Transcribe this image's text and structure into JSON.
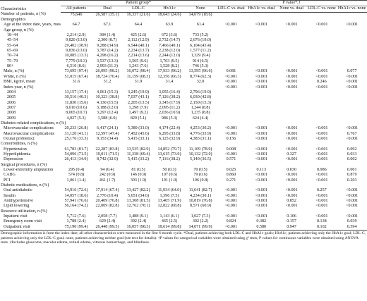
{
  "table": {
    "header": {
      "characteristics": "Characteristics",
      "group_title": "Patient group*",
      "groups": [
        "All patients",
        "Dual",
        "LDL-C",
        "HbA1c",
        "None"
      ],
      "pvalue_title": "P value*,†",
      "pvalue_columns": [
        "LDL-C vs. dual",
        "HbA1c vs. dual",
        "None vs. dual",
        "LDL-C vs. none",
        "HbA1c vs. none"
      ]
    },
    "sections": [
      {
        "rows": [
          {
            "label": "Number of patients, n (%)",
            "groups": [
              "75,646",
              "26,587 (35.1)",
              "16,337 (21.6)",
              "18,643 (24.6)",
              "14,079 (18.6)"
            ]
          }
        ]
      },
      {
        "title": "Demographics",
        "rows": [
          {
            "label": "Age at the index date, years, mean",
            "groups": [
              "64.7",
              "67.1",
              "64.4",
              "63.9",
              "61.4"
            ],
            "p_values": [
              "<0.001",
              "<0.001",
              "<0.001",
              "<0.001",
              "<0.001"
            ]
          },
          {
            "label": "Age group, n (%)",
            "subrows": [
              {
                "label": "18–44",
                "groups": [
                  "2,214 (2.9)",
                  "384 (1.4)",
                  "425 (2.6)",
                  "672 (3.6)",
                  "733 (5.2)"
                ]
              },
              {
                "label": "45–54",
                "groups": [
                  "9,820 (13.0)",
                  "2,300 (8.7)",
                  "2,112 (12.9)",
                  "2,732 (14.7)",
                  "2,676 (19.0)"
                ]
              },
              {
                "label": "55–64",
                "groups": [
                  "29,402 (38.9)",
                  "9,288 (34.9)",
                  "6,544 (40.1)",
                  "7,466 (40.1)",
                  "6,104 (43.4)"
                ]
              },
              {
                "label": "65–69",
                "groups": [
                  "9,836 (13.0)",
                  "3,787 (14.2)",
                  "2,234 (13.7)",
                  "2,238 (12.0)",
                  "1,577 (11.2)"
                ]
              },
              {
                "label": "70–74",
                "groups": [
                  "10,085 (13.3)",
                  "4,298 (16.2)",
                  "2,214 (13.6)",
                  "2,244 (12.0)",
                  "1,329 (9.4)"
                ]
              },
              {
                "label": "75–79",
                "groups": [
                  "7,779 (10.3)",
                  "3,537 (13.3)",
                  "1,565 (9.6)",
                  "1,763 (9.5)",
                  "914 (6.5)"
                ]
              },
              {
                "label": "80+",
                "groups": [
                  "6,510 (8.6)",
                  "2,993 (11.3)",
                  "1,243 (7.6)",
                  "1,528 (8.2)",
                  "746 (5.3)"
                ]
              }
            ]
          },
          {
            "label": "Male, n (%)",
            "groups": [
              "73,695 (97.4)",
              "26,095 (98.2)",
              "16,072 (98.4)",
              "17,933 (96.2)",
              "13,595 (96.6)"
            ],
            "p_values": [
              "0.081",
              "<0.001",
              "<0.001",
              "<0.001",
              "0.077"
            ]
          },
          {
            "label": "White, n (%)",
            "groups": [
              "51,015 (67.4)",
              "18,724 (70.4)",
              "11,159 (68.3)",
              "12,356 (66.3)",
              "8,774 (62.3)"
            ],
            "p_values": [
              "<0.001",
              "<0.001",
              "<0.001",
              "<0.001",
              "<0.001"
            ]
          },
          {
            "label": "BMI, kg/m², mean",
            "groups": [
              "31.6",
              "31.2",
              "31.9",
              "31.4",
              "32.0"
            ],
            "p_values": [
              "<0.001",
              "<0.001",
              "<0.001",
              "0.246",
              "<0.001"
            ]
          },
          {
            "label": "Index year, n (%)",
            "p_values": [
              "<0.001",
              "<0.001",
              "<0.001",
              "<0.001",
              "<0.001"
            ],
            "subrows": [
              {
                "label": "2004",
                "groups": [
                  "13,157 (17.4)",
                  "4,061 (15.3)",
                  "3,245 (19.9)",
                  "3,055 (16.4)",
                  "2,796 (19.9)"
                ]
              },
              {
                "label": "2005",
                "groups": [
                  "30,516 (40.3)",
                  "10,323 (38.8)",
                  "7,037 (43.1)",
                  "7,126 (38.2)",
                  "6,030 (42.8)"
                ]
              },
              {
                "label": "2006",
                "groups": [
                  "11,830 (15.6)",
                  "4,130 (15.5)",
                  "2,205 (13.5)",
                  "3,345 (17.9)",
                  "2,150 (15.3)"
                ]
              },
              {
                "label": "2007",
                "groups": [
                  "8,010 (10.6)",
                  "3,188 (12.0)",
                  "1,298 (7.9)",
                  "2,095 (11.2)",
                  "1,244 (8.8)"
                ]
              },
              {
                "label": "2008",
                "groups": [
                  "8,065 (10.7)",
                  "3,297 (12.4)",
                  "1,497 (9.2)",
                  "2,036 (10.9)",
                  "1,235 (8.8)"
                ]
              },
              {
                "label": "2009",
                "groups": [
                  "4,027 (5.3)",
                  "1,588 (6.0)",
                  "829 (5.1)",
                  "986 (5.3)",
                  "624 (4.4)"
                ]
              }
            ]
          }
        ]
      },
      {
        "title": "Diabetes-related complications, n (%)",
        "rows": [
          {
            "label": "Microvascular complications",
            "groups": [
              "20,233 (26.8)",
              "6,417 (24.1)",
              "5,389 (33.0)",
              "4,174 (22.4)",
              "4,253 (30.2)"
            ],
            "p_values": [
              "<0.001",
              "<0.001",
              "<0.001",
              "<0.001",
              "<0.001"
            ]
          },
          {
            "label": "Macrovascular complications",
            "groups": [
              "31,120 (41.1)",
              "12,597 (47.4)",
              "7,452 (45.6)",
              "6,295 (33.8)",
              "4,776 (33.9)"
            ],
            "p_values": [
              "<0.001",
              "<0.001",
              "<0.001",
              "<0.001",
              "0.767"
            ]
          },
          {
            "label": "Ocular problems‡",
            "groups": [
              "25,176 (33.3)",
              "9,153 (34.4)",
              "5,415 (33.1)",
              "6,125 (32.9)",
              "4,383 (31.1)"
            ],
            "p_values": [
              "0.156",
              "<0.001",
              "<0.001",
              "<0.001",
              "<0.001"
            ]
          }
        ]
      },
      {
        "title": "Comorbidities, n (%)",
        "rows": [
          {
            "label": "Hypertension",
            "groups": [
              "61,783 (81.7)",
              "22,287 (83.8)",
              "13,535 (82.9)",
              "14,852 (79.7)",
              "11,109 (78.9)"
            ],
            "p_values": [
              "0.008",
              "<0.001",
              "<0.001",
              "<0.001",
              "0.092"
            ]
          },
          {
            "label": "Hyperlipidemia",
            "groups": [
              "54,096 (71.5)",
              "19,011 (71.5)",
              "11,338 (69.4)",
              "13,615 (73.0)",
              "10,132 (72.0)"
            ],
            "p_values": [
              "<0.001",
              "<0.001",
              "0.327",
              "<0.001",
              "0.033"
            ]
          },
          {
            "label": "Depression",
            "groups": [
              "26,413 (34.9)",
              "8,742 (32.9)",
              "5,415 (33.2)",
              "7,116 (38.2)",
              "5,140 (36.5)"
            ],
            "p_values": [
              "0.571",
              "<0.001",
              "<0.001",
              "<0.001",
              "0.002"
            ]
          }
        ]
      },
      {
        "title": "Surgical procedures, n (%)",
        "rows": [
          {
            "label": "Lower-extremity amputation",
            "groups": [
              "295 (0.4)",
              "94 (0.4)",
              "81 (0.5)",
              "50 (0.3)",
              "70 (0.5)"
            ],
            "p_values": [
              "0.025",
              "0.113",
              "0.030",
              "0.986",
              "0.001"
            ]
          },
          {
            "label": "CABG",
            "groups": [
              "574 (0.8)",
              "242 (0.9)",
              "146 (0.9)",
              "107 (0.6)",
              "79 (0.6)"
            ],
            "p_values": [
              "0.860",
              "<0.001",
              "<0.001",
              "<0.001",
              "0.879"
            ]
          },
          {
            "label": "PCI",
            "groups": [
              "1,061 (1.4)",
              "461 (1.7)",
              "303 (1.9)",
              "191 (1.0)",
              "106 (0.8)"
            ],
            "p_values": [
              "0.271",
              "<0.001",
              "<0.001",
              "<0.001",
              "0.203"
            ]
          }
        ]
      },
      {
        "title": "Diabetic medications, n (%)",
        "rows": [
          {
            "label": "Oral antidiabetic",
            "groups": [
              "54,916 (72.6)",
              "17,914 (67.4)",
              "13,427 (82.2)",
              "11,934 (64.0)",
              "11,641 (82.7)"
            ],
            "p_values": [
              "<0.001",
              "<0.001",
              "<0.001",
              "0.257",
              "<0.001"
            ]
          },
          {
            "label": "Insulin",
            "groups": [
              "14,057 (18.6)",
              "2,776 (10.4)",
              "5,651 (34.6)",
              "1,396 (7.5)",
              "4,234 (30.1)"
            ],
            "p_values": [
              "<0.001",
              "<0.001",
              "<0.001",
              "<0.001",
              "<0.001"
            ]
          },
          {
            "label": "Antihypertensive",
            "groups": [
              "57,941 (76.6)",
              "20,409 (76.8)",
              "13,308 (81.5)",
              "13,405 (71.9)",
              "10,819 (76.8)"
            ],
            "p_values": [
              "<0.001",
              "<0.001",
              "0.852",
              "<0.001",
              "<0.001"
            ]
          },
          {
            "label": "Lipid lowering",
            "groups": [
              "56,164 (74.2)",
              "22,009 (82.8)",
              "12,762 (78.1)",
              "12,822 (68.8)",
              "8,571 (60.9)"
            ],
            "p_values": [
              "<0.001",
              "<0.001",
              "<0.001",
              "<0.001",
              "<0.001"
            ]
          }
        ]
      },
      {
        "title": "Resource utilization, n (%)",
        "rows": [
          {
            "label": "Inpatient visit",
            "groups": [
              "5,712 (7.6)",
              "2,058 (7.7)",
              "1,488 (9.1)",
              "1,143 (6.1)",
              "1,027 (7.3)"
            ],
            "p_values": [
              "<0.001",
              "<0.001",
              "0.106",
              "<0.001",
              "<0.001"
            ]
          },
          {
            "label": "Emergency room visit",
            "groups": [
              "1,788 (2.4)",
              "629 (2.4)",
              "392 (2.4)",
              "465 (2.5)",
              "302 (2.2)"
            ],
            "p_values": [
              "0.824",
              "0.382",
              "0.157",
              "0.138",
              "0.039"
            ]
          },
          {
            "label": "Outpatient visit",
            "groups": [
              "75,190 (99.4)",
              "26,448 (99.5)",
              "16,057 (98.3)",
              "18,614 (99.8)",
              "14,071 (99.9)"
            ],
            "p_values": [
              "<0.001",
              "0.580",
              "0.947",
              "0.102",
              "0.594"
            ]
          }
        ]
      }
    ],
    "footnote": "Demographic information is from the index date; all other characteristics were measured in the first 6-month cycle. *Dual, patients achieving both LDL-C and HbA1c goals; HbA1c, patients achieving only the HbA1c goal; LDL-C, patients achieving only the LDL-C goal; none, patients achieving neither goal (see text for details). †P values for categorical variables were obtained using χ² tests; P values for continuous variables were obtained using ANOVA tests. ‡Includes glaucoma, macular edema, retinal edema, vitreous hemorrhage, and blindness."
  }
}
